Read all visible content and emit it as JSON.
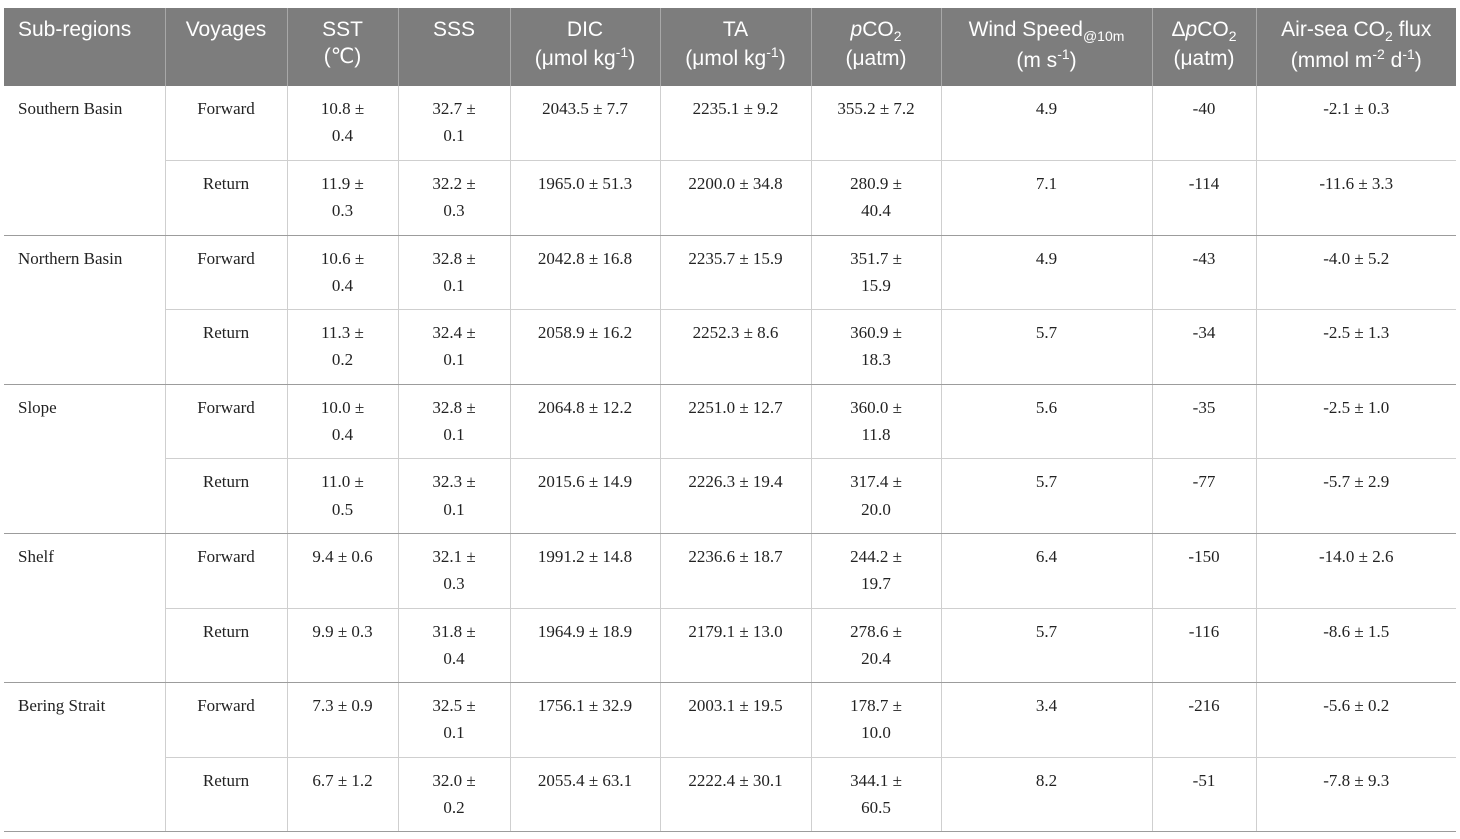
{
  "table": {
    "header": [
      [
        "Sub-regions"
      ],
      [
        "Voyages"
      ],
      [
        "SST",
        "(℃)"
      ],
      [
        "SSS"
      ],
      [
        "DIC",
        "(μmol kg",
        "-1",
        ")"
      ],
      [
        "TA",
        "(μmol kg",
        "-1",
        ")"
      ],
      [
        "p",
        "CO",
        "2",
        "(μatm)"
      ],
      [
        "Wind Speed",
        "@10m",
        "(m s",
        "-1",
        ")"
      ],
      [
        "Δ",
        "p",
        "CO",
        "2",
        "(μatm)"
      ],
      [
        "Air-sea CO",
        "2",
        " flux",
        "(mmol m",
        "-2",
        " d",
        "-1",
        ")"
      ]
    ],
    "groups": [
      {
        "region": "Southern Basin",
        "rows": [
          [
            "Forward",
            "10.8 ± 0.4",
            "32.7 ± 0.1",
            "2043.5 ± 7.7",
            "2235.1 ± 9.2",
            "355.2 ± 7.2",
            "4.9",
            "-40",
            "-2.1 ± 0.3"
          ],
          [
            "Return",
            "11.9 ± 0.3",
            "32.2 ± 0.3",
            "1965.0 ± 51.3",
            "2200.0 ± 34.8",
            "280.9 ± 40.4",
            "7.1",
            "-114",
            "-11.6 ± 3.3"
          ]
        ]
      },
      {
        "region": "Northern Basin",
        "rows": [
          [
            "Forward",
            "10.6 ± 0.4",
            "32.8 ± 0.1",
            "2042.8 ± 16.8",
            "2235.7 ± 15.9",
            "351.7 ± 15.9",
            "4.9",
            "-43",
            "-4.0 ± 5.2"
          ],
          [
            "Return",
            "11.3 ± 0.2",
            "32.4 ± 0.1",
            "2058.9 ± 16.2",
            "2252.3 ± 8.6",
            "360.9 ± 18.3",
            "5.7",
            "-34",
            "-2.5 ± 1.3"
          ]
        ]
      },
      {
        "region": "Slope",
        "rows": [
          [
            "Forward",
            "10.0 ± 0.4",
            "32.8 ± 0.1",
            "2064.8 ± 12.2",
            "2251.0 ± 12.7",
            "360.0 ± 11.8",
            "5.6",
            "-35",
            "-2.5 ± 1.0"
          ],
          [
            "Return",
            "11.0 ± 0.5",
            "32.3 ± 0.1",
            "2015.6 ± 14.9",
            "2226.3 ± 19.4",
            "317.4 ± 20.0",
            "5.7",
            "-77",
            "-5.7 ± 2.9"
          ]
        ]
      },
      {
        "region": "Shelf",
        "rows": [
          [
            "Forward",
            "9.4 ± 0.6",
            "32.1 ± 0.3",
            "1991.2 ± 14.8",
            "2236.6 ± 18.7",
            "244.2 ± 19.7",
            "6.4",
            "-150",
            "-14.0 ± 2.6"
          ],
          [
            "Return",
            "9.9 ± 0.3",
            "31.8 ± 0.4",
            "1964.9 ± 18.9",
            "2179.1 ± 13.0",
            "278.6 ± 20.4",
            "5.7",
            "-116",
            "-8.6 ± 1.5"
          ]
        ]
      },
      {
        "region": "Bering Strait",
        "rows": [
          [
            "Forward",
            "7.3 ± 0.9",
            "32.5 ± 0.1",
            "1756.1 ± 32.9",
            "2003.1 ± 19.5",
            "178.7 ± 10.0",
            "3.4",
            "-216",
            "-5.6 ± 0.2"
          ],
          [
            "Return",
            "6.7 ± 1.2",
            "32.0 ± 0.2",
            "2055.4 ± 63.1",
            "2222.4 ± 30.1",
            "344.1 ± 60.5",
            "8.2",
            "-51",
            "-7.8 ± 9.3"
          ]
        ]
      }
    ]
  }
}
